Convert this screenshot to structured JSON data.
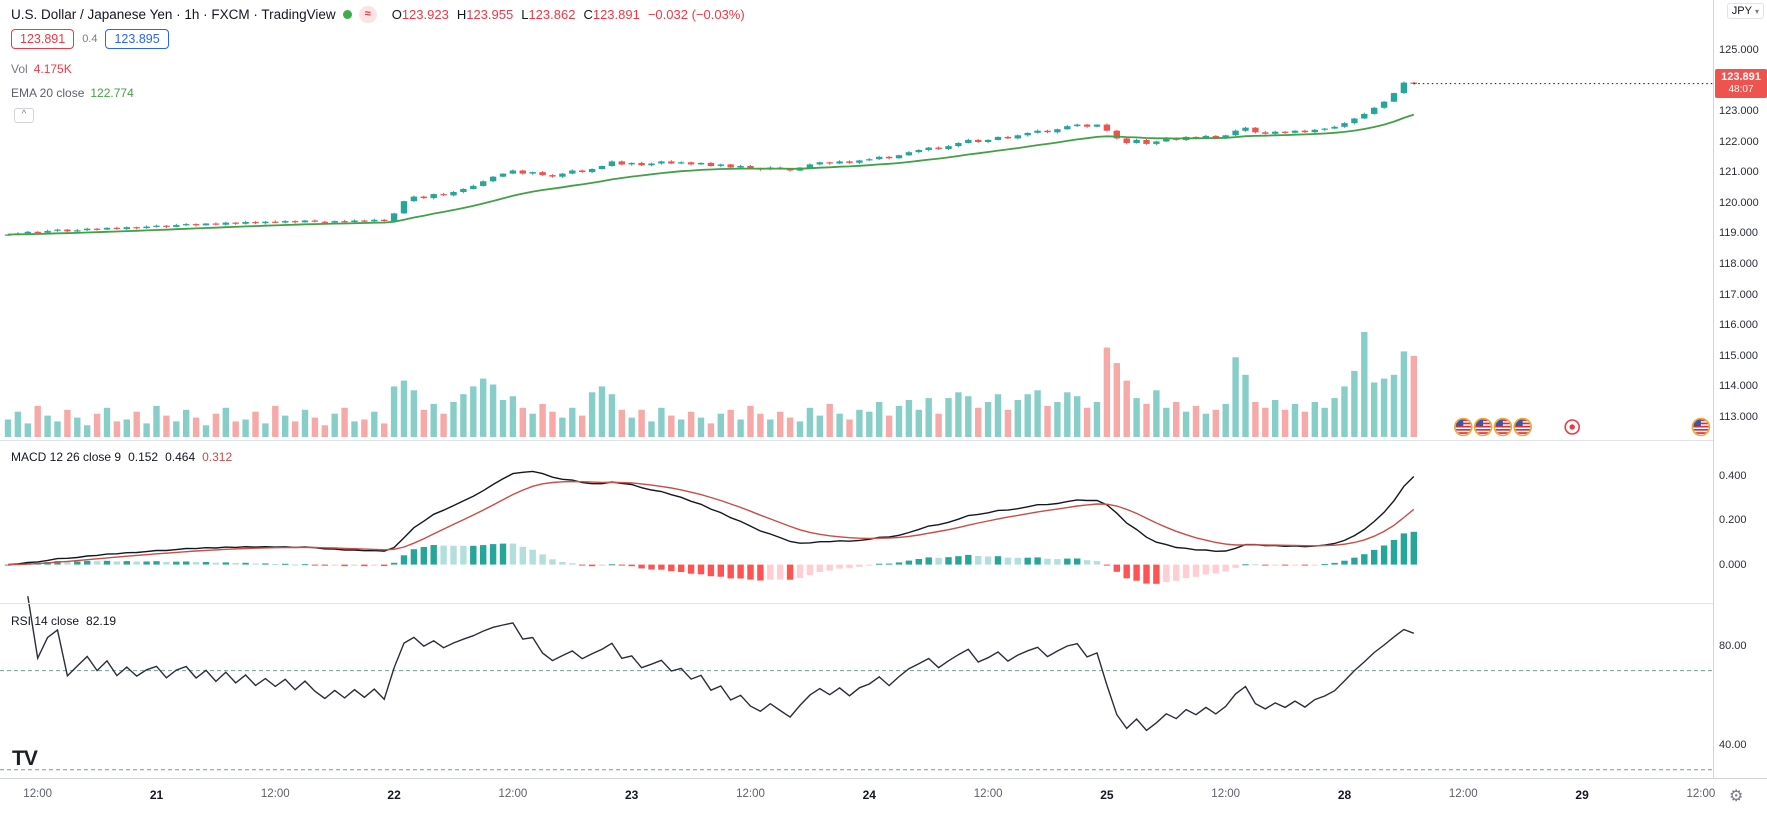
{
  "header": {
    "title": "U.S. Dollar / Japanese Yen · 1h · FXCM · TradingView",
    "ohlc": {
      "o_label": "O",
      "o_value": "123.923",
      "h_label": "H",
      "h_value": "123.955",
      "l_label": "L",
      "l_value": "123.862",
      "c_label": "C",
      "c_value": "123.891",
      "change": "−0.032 (−0.03%)"
    },
    "bid": "123.891",
    "spread": "0.4",
    "ask": "123.895",
    "vol_label": "Vol",
    "vol_value": "4.175K",
    "ema_label": "EMA 20 close",
    "ema_value": "122.774"
  },
  "macd_legend": {
    "title": "MACD 12 26 close 9",
    "hist": "0.152",
    "macd": "0.464",
    "signal": "0.312"
  },
  "rsi_legend": {
    "title": "RSI 14 close",
    "value": "82.19"
  },
  "axis": {
    "currency": "JPY",
    "price_labels": [
      "125.000",
      "124.000",
      "123.000",
      "122.000",
      "121.000",
      "120.000",
      "119.000",
      "118.000",
      "117.000",
      "116.000",
      "115.000",
      "114.000",
      "113.000"
    ],
    "macd_labels": [
      "0.400",
      "0.200",
      "0.000"
    ],
    "rsi_labels": [
      "80.00",
      "40.00"
    ]
  },
  "badge": {
    "price": "123.891",
    "countdown": "48:07"
  },
  "time_axis": {
    "labels": [
      {
        "t": "12:00",
        "i": 3,
        "m": 1
      },
      {
        "t": "21",
        "i": 15
      },
      {
        "t": "12:00",
        "i": 27,
        "m": 1
      },
      {
        "t": "22",
        "i": 39
      },
      {
        "t": "12:00",
        "i": 51,
        "m": 1
      },
      {
        "t": "23",
        "i": 63
      },
      {
        "t": "12:00",
        "i": 75,
        "m": 1
      },
      {
        "t": "24",
        "i": 87
      },
      {
        "t": "12:00",
        "i": 99,
        "m": 1
      },
      {
        "t": "25",
        "i": 111
      },
      {
        "t": "12:00",
        "i": 123,
        "m": 1
      },
      {
        "t": "28",
        "i": 135
      },
      {
        "t": "12:00",
        "i": 147,
        "m": 1
      },
      {
        "t": "29",
        "i": 159
      },
      {
        "t": "12:00",
        "i": 171,
        "m": 1
      }
    ]
  },
  "icons": {
    "approx": "≈",
    "chevron_down": "▾",
    "gear": "⚙",
    "collapse": "^",
    "tv_logo": "TV"
  },
  "colors": {
    "up": "#26a69a",
    "down": "#ef5350",
    "vol_up": "rgba(38,166,154,0.55)",
    "vol_down": "rgba(239,83,80,0.5)",
    "ema": "#43a047",
    "macd_line": "#131722",
    "signal_line": "#cc4b44",
    "hist_grow_above": "#26a69a",
    "hist_fall_above": "#b2dfdb",
    "hist_fall_below": "#ff5252",
    "hist_grow_below": "#ffcdd2",
    "rsi_line": "#2a2e39",
    "rsi_band": "#789e98",
    "last_price_line": "#131722",
    "badge_bg": "#ef5350"
  },
  "event_markers": [
    {
      "kind": "us-flag",
      "x_index": 147
    },
    {
      "kind": "us-flag",
      "x_index": 149
    },
    {
      "kind": "us-flag",
      "x_index": 151
    },
    {
      "kind": "us-flag",
      "x_index": 153
    },
    {
      "kind": "marker-dot",
      "x_index": 158
    },
    {
      "kind": "us-flag",
      "x_index": 171
    }
  ],
  "chart_data": [
    {
      "type": "candlestick",
      "symbol": "USD/JPY",
      "interval": "1h",
      "first_open": 118.93,
      "closes": [
        118.96,
        119.0,
        119.05,
        119.02,
        119.08,
        119.12,
        119.06,
        119.1,
        119.15,
        119.12,
        119.18,
        119.14,
        119.2,
        119.17,
        119.22,
        119.25,
        119.21,
        119.27,
        119.3,
        119.26,
        119.32,
        119.28,
        119.35,
        119.31,
        119.37,
        119.33,
        119.38,
        119.35,
        119.4,
        119.36,
        119.42,
        119.38,
        119.35,
        119.4,
        119.37,
        119.42,
        119.39,
        119.44,
        119.4,
        119.65,
        120.05,
        120.2,
        120.15,
        120.28,
        120.24,
        120.35,
        120.45,
        120.55,
        120.7,
        120.85,
        120.95,
        121.05,
        120.95,
        121.0,
        120.9,
        120.85,
        120.95,
        121.05,
        121.0,
        121.1,
        121.2,
        121.35,
        121.25,
        121.3,
        121.22,
        121.28,
        121.35,
        121.28,
        121.32,
        121.25,
        121.3,
        121.2,
        121.25,
        121.15,
        121.2,
        121.12,
        121.08,
        121.15,
        121.1,
        121.05,
        121.15,
        121.25,
        121.32,
        121.28,
        121.35,
        121.3,
        121.38,
        121.42,
        121.5,
        121.45,
        121.55,
        121.65,
        121.72,
        121.8,
        121.75,
        121.85,
        121.95,
        122.05,
        121.98,
        122.05,
        122.15,
        122.1,
        122.2,
        122.28,
        122.35,
        122.3,
        122.4,
        122.5,
        122.55,
        122.48,
        122.55,
        122.35,
        122.1,
        121.95,
        122.05,
        121.92,
        122.0,
        122.1,
        122.05,
        122.15,
        122.1,
        122.18,
        122.12,
        122.2,
        122.35,
        122.45,
        122.3,
        122.25,
        122.32,
        122.28,
        122.35,
        122.3,
        122.38,
        122.42,
        122.48,
        122.6,
        122.75,
        122.9,
        123.1,
        123.3,
        123.58,
        123.923,
        123.891
      ],
      "volumes_k": [
        0.9,
        1.3,
        0.7,
        1.6,
        1.1,
        0.8,
        1.4,
        1.0,
        0.6,
        1.2,
        1.5,
        0.8,
        0.9,
        1.3,
        0.7,
        1.6,
        1.1,
        0.8,
        1.4,
        1.0,
        0.6,
        1.2,
        1.5,
        0.8,
        0.9,
        1.3,
        0.7,
        1.6,
        1.1,
        0.8,
        1.4,
        1.0,
        0.6,
        1.2,
        1.5,
        0.8,
        0.9,
        1.3,
        0.7,
        2.6,
        2.9,
        2.4,
        1.4,
        1.7,
        1.2,
        1.8,
        2.2,
        2.6,
        3.0,
        2.7,
        1.9,
        2.1,
        1.5,
        1.2,
        1.7,
        1.3,
        1.0,
        1.5,
        1.1,
        2.3,
        2.6,
        2.2,
        1.4,
        1.0,
        1.4,
        0.8,
        1.5,
        1.1,
        0.9,
        1.3,
        1.0,
        0.7,
        1.2,
        1.4,
        0.9,
        1.6,
        1.2,
        0.9,
        1.3,
        1.0,
        0.8,
        1.5,
        1.1,
        1.7,
        1.2,
        0.9,
        1.4,
        1.3,
        1.8,
        1.1,
        1.6,
        1.9,
        1.4,
        2.0,
        1.2,
        2.0,
        2.3,
        2.1,
        1.5,
        1.8,
        2.2,
        1.4,
        1.9,
        2.2,
        2.4,
        1.6,
        1.8,
        2.3,
        2.1,
        1.5,
        1.8,
        4.6,
        3.8,
        2.9,
        2.0,
        1.7,
        2.4,
        1.5,
        1.8,
        1.3,
        1.6,
        1.2,
        1.4,
        1.7,
        4.1,
        3.2,
        1.8,
        1.5,
        1.9,
        1.4,
        1.7,
        1.3,
        1.8,
        1.5,
        2.0,
        2.6,
        3.4,
        5.4,
        2.8,
        3.0,
        3.2,
        4.4,
        4.175
      ],
      "last_price": 123.891,
      "y_axis": {
        "min": 112.8,
        "max": 125.4,
        "tick_step": 1.0
      },
      "overlays": [
        {
          "name": "EMA 20",
          "value": 122.774
        }
      ]
    },
    {
      "type": "macd",
      "title": "MACD 12 26 close 9",
      "params": {
        "fast": 12,
        "slow": 26,
        "source": "close",
        "signal": 9
      },
      "current": {
        "histogram": 0.152,
        "macd": 0.464,
        "signal": 0.312
      },
      "y_ticks": [
        0.4,
        0.2,
        0.0
      ]
    },
    {
      "type": "rsi",
      "title": "RSI 14 close",
      "params": {
        "length": 14,
        "source": "close"
      },
      "current": 82.19,
      "bands": [
        70,
        30
      ],
      "y_ticks": [
        80,
        40
      ]
    }
  ]
}
